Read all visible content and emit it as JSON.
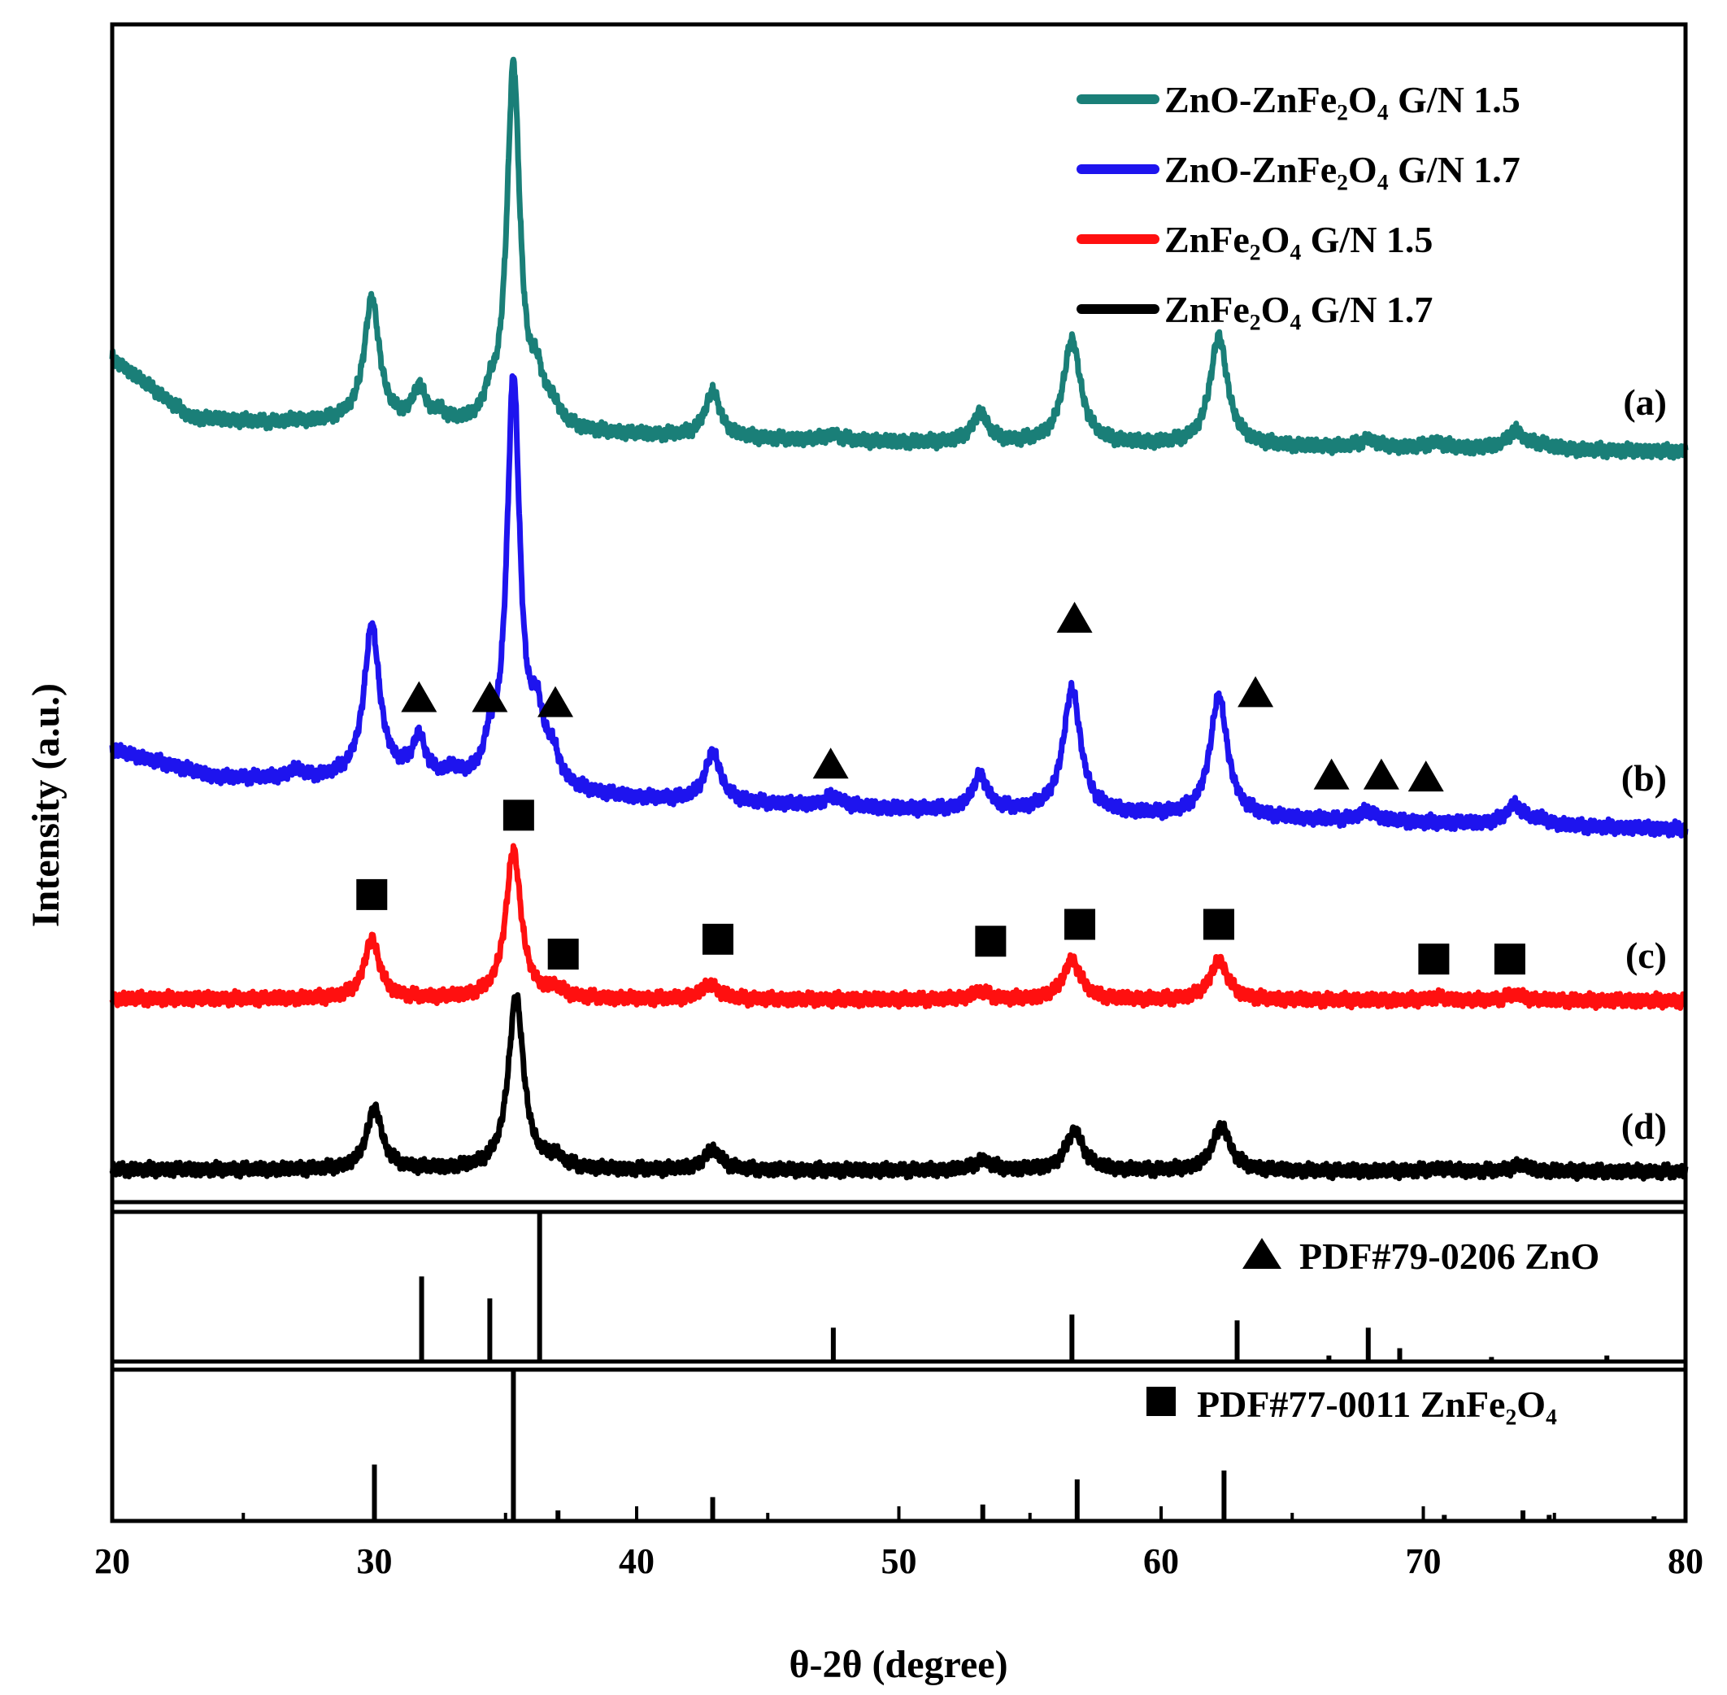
{
  "chart_data": {
    "type": "line",
    "xlabel": "θ-2θ (degree)",
    "ylabel": "Intensity (a.u.)",
    "xlim": [
      20,
      80
    ],
    "xticks": [
      20,
      30,
      40,
      50,
      60,
      70,
      80
    ],
    "legend_position": "top-right",
    "grid": false,
    "series": [
      {
        "name": "ZnO-ZnFe₂O₄ G/N 1.5",
        "curve_label": "(a)",
        "color": "#1a7f78",
        "baseline": [
          [
            20,
            0.88
          ],
          [
            23,
            0.28
          ],
          [
            27,
            0.21
          ],
          [
            29,
            0.24
          ],
          [
            31,
            0.19
          ],
          [
            35,
            0.15
          ],
          [
            40,
            0.1
          ],
          [
            45,
            0.06
          ],
          [
            50,
            0.03
          ],
          [
            60,
            0.0
          ],
          [
            80,
            -0.06
          ]
        ],
        "peaks": [
          [
            27.0,
            0.04,
            0.3
          ],
          [
            29.9,
            1.25,
            0.35
          ],
          [
            31.7,
            0.35,
            0.3
          ],
          [
            32.5,
            0.1,
            0.3
          ],
          [
            34.4,
            0.2,
            0.25
          ],
          [
            35.3,
            3.65,
            0.3
          ],
          [
            36.2,
            0.4,
            0.3
          ],
          [
            36.8,
            0.18,
            0.3
          ],
          [
            42.9,
            0.46,
            0.35
          ],
          [
            47.5,
            0.06,
            0.4
          ],
          [
            53.1,
            0.3,
            0.35
          ],
          [
            56.6,
            1.05,
            0.4
          ],
          [
            62.2,
            1.1,
            0.4
          ],
          [
            67.9,
            0.08,
            0.4
          ],
          [
            70.5,
            0.06,
            0.4
          ],
          [
            73.5,
            0.18,
            0.4
          ],
          [
            74.5,
            0.05,
            0.4
          ]
        ]
      },
      {
        "name": "ZnO-ZnFe₂O₄ G/N 1.7",
        "curve_label": "(b)",
        "color": "#1e14ee",
        "baseline": [
          [
            20,
            0.72
          ],
          [
            24,
            0.44
          ],
          [
            28,
            0.42
          ],
          [
            30,
            0.46
          ],
          [
            33,
            0.36
          ],
          [
            40,
            0.22
          ],
          [
            50,
            0.12
          ],
          [
            60,
            0.05
          ],
          [
            80,
            -0.08
          ]
        ],
        "peaks": [
          [
            27.0,
            0.08,
            0.3
          ],
          [
            29.9,
            1.5,
            0.35
          ],
          [
            31.7,
            0.4,
            0.3
          ],
          [
            33.0,
            0.1,
            0.3
          ],
          [
            34.4,
            0.3,
            0.25
          ],
          [
            35.3,
            4.1,
            0.3
          ],
          [
            36.2,
            0.6,
            0.3
          ],
          [
            36.8,
            0.28,
            0.3
          ],
          [
            42.9,
            0.5,
            0.35
          ],
          [
            47.5,
            0.1,
            0.4
          ],
          [
            53.1,
            0.35,
            0.35
          ],
          [
            56.6,
            1.25,
            0.4
          ],
          [
            62.2,
            1.22,
            0.4
          ],
          [
            67.9,
            0.1,
            0.4
          ],
          [
            73.5,
            0.2,
            0.4
          ],
          [
            74.5,
            0.05,
            0.4
          ]
        ]
      },
      {
        "name": "ZnFe₂O₄ G/N 1.5",
        "curve_label": "(c)",
        "color": "#ff1010",
        "baseline": [
          [
            20,
            0.0
          ],
          [
            80,
            -0.02
          ]
        ],
        "peaks": [
          [
            29.9,
            0.6,
            0.35
          ],
          [
            35.3,
            1.5,
            0.35
          ],
          [
            36.9,
            0.08,
            0.35
          ],
          [
            42.8,
            0.15,
            0.4
          ],
          [
            53.1,
            0.08,
            0.4
          ],
          [
            56.6,
            0.4,
            0.4
          ],
          [
            62.2,
            0.4,
            0.4
          ],
          [
            70.5,
            0.03,
            0.4
          ],
          [
            73.5,
            0.06,
            0.4
          ]
        ]
      },
      {
        "name": "ZnFe₂O₄ G/N 1.7",
        "curve_label": "(d)",
        "color": "#000000",
        "baseline": [
          [
            20,
            0.0
          ],
          [
            80,
            -0.02
          ]
        ],
        "peaks": [
          [
            30.0,
            0.62,
            0.35
          ],
          [
            35.4,
            1.75,
            0.35
          ],
          [
            36.9,
            0.1,
            0.35
          ],
          [
            42.9,
            0.2,
            0.4
          ],
          [
            53.2,
            0.1,
            0.4
          ],
          [
            56.7,
            0.4,
            0.4
          ],
          [
            62.3,
            0.45,
            0.4
          ],
          [
            70.6,
            0.03,
            0.4
          ],
          [
            73.7,
            0.06,
            0.4
          ]
        ]
      }
    ],
    "markers": {
      "triangle": [
        {
          "curve": "(b)",
          "x": 31.7,
          "y": 1.25
        },
        {
          "curve": "(b)",
          "x": 34.4,
          "y": 1.25
        },
        {
          "curve": "(b)",
          "x": 36.9,
          "y": 1.2
        },
        {
          "curve": "(b)",
          "x": 47.4,
          "y": 0.58
        },
        {
          "curve": "(b)",
          "x": 56.7,
          "y": 2.05
        },
        {
          "curve": "(b)",
          "x": 63.6,
          "y": 1.3
        },
        {
          "curve": "(b)",
          "x": 66.5,
          "y": 0.47
        },
        {
          "curve": "(b)",
          "x": 68.4,
          "y": 0.47
        },
        {
          "curve": "(b)",
          "x": 70.1,
          "y": 0.45
        }
      ],
      "square": [
        {
          "curve": "(c)",
          "x": 29.9,
          "y": 1.05
        },
        {
          "curve": "(c)",
          "x": 35.5,
          "y": 1.85
        },
        {
          "curve": "(c)",
          "x": 37.2,
          "y": 0.45
        },
        {
          "curve": "(c)",
          "x": 43.1,
          "y": 0.6
        },
        {
          "curve": "(c)",
          "x": 53.5,
          "y": 0.58
        },
        {
          "curve": "(c)",
          "x": 56.9,
          "y": 0.75
        },
        {
          "curve": "(c)",
          "x": 62.2,
          "y": 0.75
        },
        {
          "curve": "(c)",
          "x": 70.4,
          "y": 0.4
        },
        {
          "curve": "(c)",
          "x": 73.3,
          "y": 0.4
        }
      ]
    },
    "reference_patterns": [
      {
        "label": "PDF#79-0206 ZnO",
        "marker": "triangle",
        "sticks": [
          [
            31.8,
            57
          ],
          [
            34.4,
            42
          ],
          [
            36.3,
            100
          ],
          [
            47.5,
            22
          ],
          [
            56.6,
            31
          ],
          [
            62.9,
            27
          ],
          [
            66.4,
            3
          ],
          [
            67.9,
            22
          ],
          [
            69.1,
            8
          ],
          [
            72.6,
            2
          ],
          [
            77.0,
            3
          ]
        ]
      },
      {
        "label": "PDF#77-0011 ZnFe₂O₄",
        "marker": "square",
        "sticks": [
          [
            30.0,
            37
          ],
          [
            35.3,
            100
          ],
          [
            37.0,
            6
          ],
          [
            42.9,
            15
          ],
          [
            53.2,
            10
          ],
          [
            56.8,
            27
          ],
          [
            62.4,
            33
          ],
          [
            70.8,
            3
          ],
          [
            73.8,
            6
          ],
          [
            74.8,
            3
          ],
          [
            78.8,
            2
          ]
        ]
      }
    ]
  }
}
